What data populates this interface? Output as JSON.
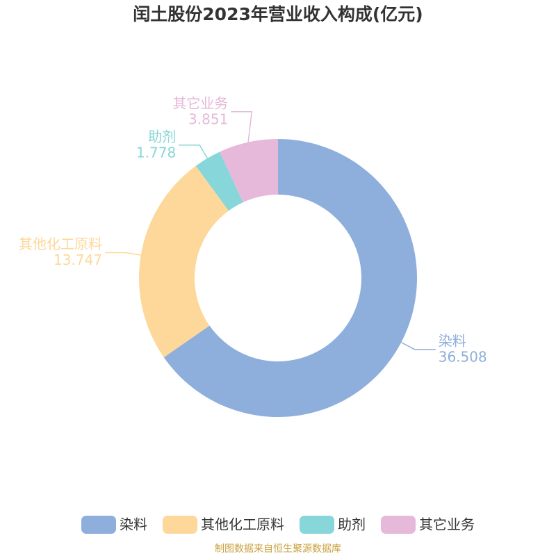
{
  "chart_data": {
    "type": "pie",
    "title": "闰土股份2023年营业收入构成(亿元)",
    "categories": [
      "染料",
      "其他化工原料",
      "助剂",
      "其它业务"
    ],
    "values": [
      36.508,
      13.747,
      1.778,
      3.851
    ],
    "colors": [
      "#8eaedb",
      "#fdd89a",
      "#87d6d9",
      "#e6b8d9"
    ],
    "legend": "bottom",
    "source": "制图数据来自恒生聚源数据库"
  }
}
